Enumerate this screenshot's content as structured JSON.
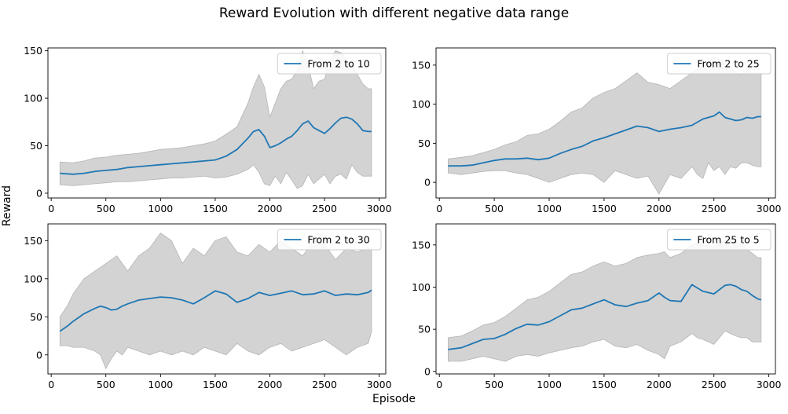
{
  "figure": {
    "title": "Reward Evolution with different negative data range",
    "xlabel": "Episode",
    "ylabel": "Reward"
  },
  "colors": {
    "line": "#1f77b4",
    "band": "#d3d3d3",
    "band_edge": "#b5b5b5"
  },
  "chart_data": [
    {
      "type": "line",
      "series": [
        {
          "name": "From 2 to 10"
        }
      ],
      "legend": "top-right",
      "xlim": [
        -30,
        3060
      ],
      "ylim": [
        -5,
        153
      ],
      "xticks": [
        0,
        500,
        1000,
        1500,
        2000,
        2500,
        3000
      ],
      "yticks": [
        0,
        50,
        100,
        150
      ],
      "x": [
        80,
        200,
        300,
        400,
        500,
        600,
        700,
        800,
        900,
        1000,
        1100,
        1200,
        1300,
        1400,
        1500,
        1600,
        1700,
        1800,
        1850,
        1900,
        1950,
        2000,
        2050,
        2100,
        2150,
        2200,
        2250,
        2300,
        2350,
        2400,
        2450,
        2500,
        2550,
        2600,
        2650,
        2700,
        2750,
        2800,
        2850,
        2900,
        2930
      ],
      "mean": [
        21,
        20,
        21,
        23,
        24,
        25,
        27,
        28,
        29,
        30,
        31,
        32,
        33,
        34,
        35,
        39,
        46,
        58,
        65,
        67,
        60,
        48,
        50,
        53,
        57,
        60,
        66,
        73,
        76,
        69,
        66,
        63,
        68,
        74,
        79,
        80,
        78,
        73,
        66,
        65,
        65
      ],
      "upper": [
        33,
        32,
        34,
        37,
        38,
        40,
        41,
        42,
        44,
        46,
        47,
        48,
        50,
        52,
        55,
        62,
        70,
        95,
        112,
        125,
        112,
        80,
        95,
        110,
        118,
        120,
        130,
        150,
        135,
        110,
        118,
        120,
        140,
        150,
        148,
        142,
        135,
        125,
        115,
        110,
        110
      ],
      "lower": [
        9,
        8,
        9,
        10,
        11,
        12,
        12,
        13,
        14,
        15,
        16,
        16,
        17,
        18,
        16,
        17,
        20,
        25,
        30,
        22,
        10,
        8,
        18,
        10,
        22,
        14,
        5,
        8,
        20,
        10,
        15,
        20,
        10,
        18,
        20,
        15,
        30,
        22,
        18,
        18,
        18
      ]
    },
    {
      "type": "line",
      "series": [
        {
          "name": "From 2 to 25"
        }
      ],
      "legend": "top-right",
      "xlim": [
        -30,
        3060
      ],
      "ylim": [
        -20,
        172
      ],
      "xticks": [
        0,
        500,
        1000,
        1500,
        2000,
        2500,
        3000
      ],
      "yticks": [
        0,
        50,
        100,
        150
      ],
      "x": [
        80,
        200,
        300,
        400,
        500,
        600,
        700,
        800,
        900,
        1000,
        1100,
        1200,
        1300,
        1400,
        1500,
        1600,
        1700,
        1800,
        1900,
        2000,
        2100,
        2200,
        2300,
        2350,
        2400,
        2450,
        2500,
        2550,
        2600,
        2650,
        2700,
        2750,
        2800,
        2850,
        2900,
        2930
      ],
      "mean": [
        21,
        21,
        22,
        25,
        28,
        30,
        30,
        31,
        29,
        31,
        37,
        42,
        46,
        53,
        57,
        62,
        67,
        72,
        70,
        65,
        68,
        70,
        73,
        77,
        81,
        83,
        85,
        90,
        83,
        81,
        79,
        80,
        83,
        82,
        84,
        84
      ],
      "upper": [
        30,
        32,
        34,
        38,
        42,
        48,
        52,
        60,
        62,
        68,
        78,
        90,
        95,
        108,
        115,
        120,
        130,
        140,
        128,
        125,
        120,
        130,
        140,
        145,
        150,
        155,
        160,
        158,
        150,
        148,
        140,
        138,
        145,
        140,
        140,
        138
      ],
      "lower": [
        12,
        10,
        12,
        14,
        15,
        15,
        12,
        10,
        5,
        0,
        5,
        10,
        12,
        10,
        0,
        15,
        10,
        5,
        8,
        -15,
        10,
        5,
        20,
        10,
        5,
        25,
        15,
        20,
        10,
        20,
        18,
        25,
        25,
        22,
        20,
        20
      ]
    },
    {
      "type": "line",
      "series": [
        {
          "name": "From 2 to 30"
        }
      ],
      "legend": "top-right",
      "xlim": [
        -30,
        3060
      ],
      "ylim": [
        -25,
        172
      ],
      "xticks": [
        0,
        500,
        1000,
        1500,
        2000,
        2500,
        3000
      ],
      "yticks": [
        0,
        50,
        100,
        150
      ],
      "x": [
        80,
        150,
        200,
        300,
        400,
        450,
        500,
        550,
        600,
        650,
        700,
        800,
        900,
        1000,
        1100,
        1200,
        1300,
        1400,
        1500,
        1600,
        1700,
        1800,
        1900,
        2000,
        2100,
        2200,
        2300,
        2400,
        2500,
        2600,
        2700,
        2800,
        2900,
        2930
      ],
      "mean": [
        31,
        38,
        44,
        54,
        61,
        64,
        62,
        59,
        60,
        64,
        67,
        72,
        74,
        76,
        75,
        72,
        67,
        75,
        84,
        80,
        69,
        74,
        82,
        78,
        81,
        84,
        79,
        80,
        84,
        78,
        80,
        79,
        82,
        85
      ],
      "upper": [
        50,
        65,
        80,
        100,
        110,
        115,
        120,
        125,
        130,
        120,
        110,
        130,
        140,
        160,
        150,
        120,
        140,
        130,
        150,
        155,
        135,
        130,
        145,
        135,
        150,
        140,
        130,
        150,
        145,
        125,
        140,
        135,
        140,
        140
      ],
      "lower": [
        12,
        12,
        10,
        10,
        5,
        0,
        -18,
        -5,
        5,
        0,
        10,
        5,
        0,
        5,
        0,
        5,
        0,
        10,
        5,
        0,
        15,
        5,
        0,
        10,
        15,
        5,
        10,
        15,
        20,
        10,
        0,
        10,
        15,
        30
      ]
    },
    {
      "type": "line",
      "series": [
        {
          "name": "From 25 to 5"
        }
      ],
      "legend": "top-right",
      "xlim": [
        -30,
        3060
      ],
      "ylim": [
        -3,
        175
      ],
      "xticks": [
        0,
        500,
        1000,
        1500,
        2000,
        2500,
        3000
      ],
      "yticks": [
        0,
        50,
        100,
        150
      ],
      "x": [
        80,
        200,
        300,
        400,
        500,
        600,
        700,
        800,
        900,
        1000,
        1100,
        1200,
        1300,
        1400,
        1500,
        1600,
        1700,
        1800,
        1900,
        2000,
        2050,
        2100,
        2200,
        2300,
        2350,
        2400,
        2500,
        2600,
        2650,
        2700,
        2750,
        2800,
        2850,
        2900,
        2930
      ],
      "mean": [
        26,
        28,
        33,
        38,
        39,
        44,
        51,
        56,
        55,
        59,
        66,
        73,
        75,
        80,
        85,
        79,
        77,
        81,
        84,
        93,
        88,
        84,
        83,
        103,
        99,
        95,
        92,
        102,
        103,
        101,
        97,
        95,
        90,
        86,
        85
      ],
      "upper": [
        40,
        42,
        48,
        55,
        58,
        65,
        75,
        85,
        88,
        95,
        105,
        115,
        118,
        125,
        130,
        125,
        128,
        135,
        138,
        140,
        142,
        135,
        140,
        150,
        152,
        150,
        148,
        155,
        158,
        155,
        150,
        145,
        140,
        135,
        135
      ],
      "lower": [
        12,
        12,
        15,
        18,
        15,
        12,
        18,
        20,
        18,
        22,
        25,
        28,
        30,
        35,
        38,
        30,
        28,
        32,
        25,
        20,
        15,
        30,
        35,
        45,
        40,
        38,
        32,
        48,
        45,
        42,
        40,
        40,
        35,
        35,
        35
      ]
    }
  ]
}
